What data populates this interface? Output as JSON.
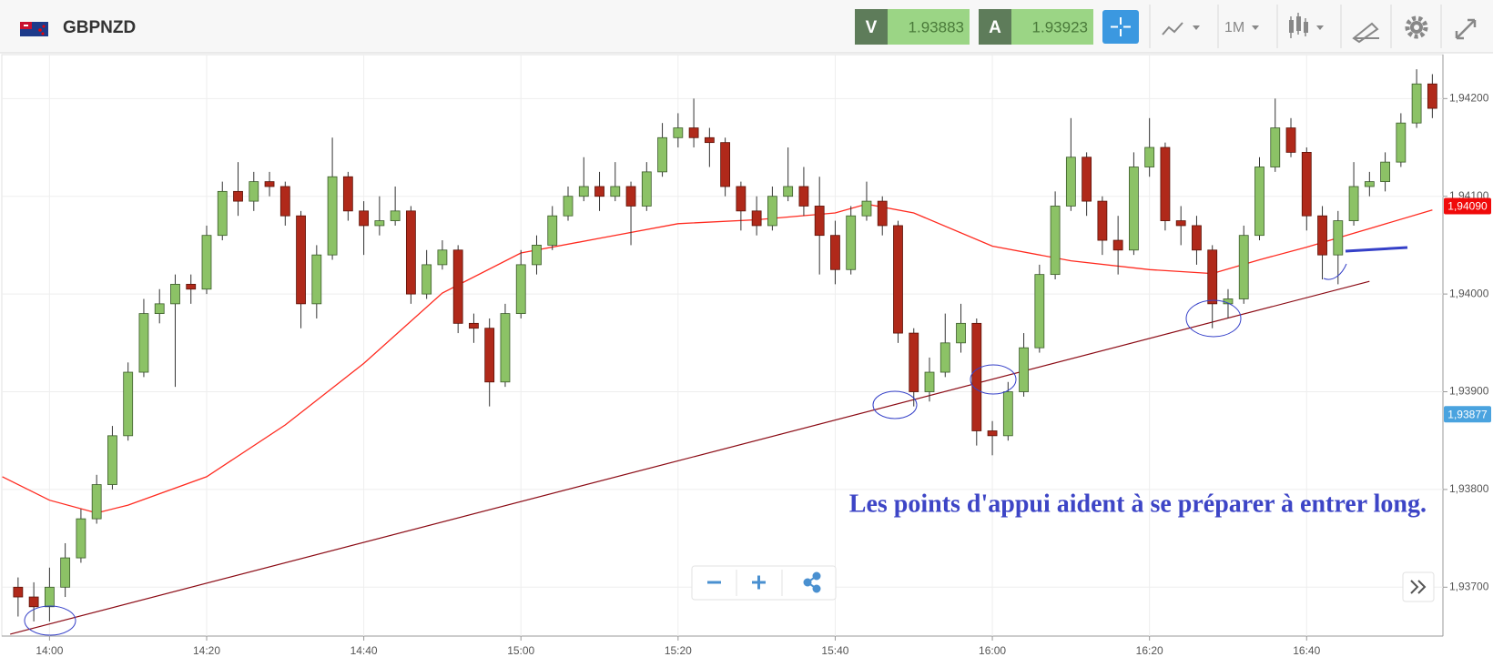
{
  "header": {
    "symbol": "GBPNZD",
    "bid_label": "V",
    "bid": "1.93883",
    "ask_label": "A",
    "ask": "1.93923",
    "timeframe": "1M"
  },
  "chart_data": {
    "type": "candlestick",
    "annotation": "Les points d'appui aident à se préparer à entrer long.",
    "x": [
      "13:56",
      "13:58",
      "14:00",
      "14:02",
      "14:04",
      "14:06",
      "14:08",
      "14:10",
      "14:12",
      "14:14",
      "14:16",
      "14:18",
      "14:20",
      "14:22",
      "14:24",
      "14:26",
      "14:28",
      "14:30",
      "14:32",
      "14:34",
      "14:36",
      "14:38",
      "14:40",
      "14:42",
      "14:44",
      "14:46",
      "14:48",
      "14:50",
      "14:52",
      "14:54",
      "14:56",
      "14:58",
      "15:00",
      "15:02",
      "15:04",
      "15:06",
      "15:08",
      "15:10",
      "15:12",
      "15:14",
      "15:16",
      "15:18",
      "15:20",
      "15:22",
      "15:24",
      "15:26",
      "15:28",
      "15:30",
      "15:32",
      "15:34",
      "15:36",
      "15:38",
      "15:40",
      "15:42",
      "15:44",
      "15:46",
      "15:48",
      "15:50",
      "15:52",
      "15:54",
      "15:56",
      "15:58",
      "16:00",
      "16:02",
      "16:04",
      "16:06",
      "16:08",
      "16:10",
      "16:12",
      "16:14",
      "16:16",
      "16:18",
      "16:20",
      "16:22",
      "16:24",
      "16:26",
      "16:28",
      "16:30",
      "16:32",
      "16:34",
      "16:36",
      "16:38",
      "16:40",
      "16:42",
      "16:44",
      "16:46",
      "16:48",
      "16:50",
      "16:52",
      "16:54",
      "16:56"
    ],
    "open": [
      1.937,
      1.9369,
      1.9368,
      1.937,
      1.9373,
      1.9377,
      1.93805,
      1.93855,
      1.9392,
      1.9398,
      1.9399,
      1.9401,
      1.94005,
      1.9406,
      1.94105,
      1.94095,
      1.94115,
      1.9411,
      1.9408,
      1.9399,
      1.9404,
      1.9412,
      1.94085,
      1.9407,
      1.94075,
      1.94085,
      1.94,
      1.9403,
      1.94045,
      1.9397,
      1.93965,
      1.9391,
      1.9398,
      1.9403,
      1.9405,
      1.9408,
      1.941,
      1.9411,
      1.941,
      1.9411,
      1.9409,
      1.94125,
      1.9416,
      1.9417,
      1.9416,
      1.94155,
      1.9411,
      1.94085,
      1.9407,
      1.941,
      1.9411,
      1.9409,
      1.9406,
      1.94025,
      1.9408,
      1.94095,
      1.9407,
      1.9396,
      1.939,
      1.9392,
      1.9395,
      1.9397,
      1.9386,
      1.93855,
      1.939,
      1.93945,
      1.9402,
      1.9409,
      1.9414,
      1.94095,
      1.94055,
      1.94045,
      1.9413,
      1.9415,
      1.94075,
      1.9407,
      1.94045,
      1.9399,
      1.93995,
      1.9406,
      1.9413,
      1.9417,
      1.94145,
      1.9408,
      1.9404,
      1.94075,
      1.9411,
      1.94115,
      1.94135,
      1.94175,
      1.94215
    ],
    "high": [
      1.9371,
      1.93705,
      1.9372,
      1.93745,
      1.9378,
      1.93815,
      1.93865,
      1.9393,
      1.93995,
      1.94005,
      1.9402,
      1.9402,
      1.9407,
      1.94115,
      1.94135,
      1.94125,
      1.94125,
      1.94115,
      1.94085,
      1.9405,
      1.9416,
      1.94125,
      1.94095,
      1.941,
      1.9411,
      1.9409,
      1.94045,
      1.94055,
      1.9405,
      1.9398,
      1.93975,
      1.9399,
      1.94045,
      1.9406,
      1.9409,
      1.9411,
      1.9414,
      1.94125,
      1.94135,
      1.94115,
      1.94135,
      1.94175,
      1.94185,
      1.942,
      1.9417,
      1.9416,
      1.94115,
      1.941,
      1.9411,
      1.9415,
      1.9413,
      1.9412,
      1.94075,
      1.9409,
      1.94115,
      1.941,
      1.94075,
      1.93965,
      1.93935,
      1.9398,
      1.9399,
      1.93975,
      1.9387,
      1.9391,
      1.9396,
      1.9403,
      1.94105,
      1.9418,
      1.94145,
      1.941,
      1.9408,
      1.94145,
      1.9418,
      1.94155,
      1.9409,
      1.9408,
      1.9405,
      1.94005,
      1.9407,
      1.9414,
      1.942,
      1.9418,
      1.9415,
      1.9409,
      1.94085,
      1.94135,
      1.94125,
      1.94145,
      1.94185,
      1.9423,
      1.94225
    ],
    "low": [
      1.9367,
      1.93665,
      1.93665,
      1.9369,
      1.93725,
      1.93765,
      1.938,
      1.9385,
      1.93915,
      1.9397,
      1.93905,
      1.9399,
      1.94,
      1.94055,
      1.9408,
      1.94085,
      1.941,
      1.9407,
      1.93965,
      1.93975,
      1.94035,
      1.94075,
      1.9404,
      1.9406,
      1.9407,
      1.9399,
      1.93995,
      1.94025,
      1.9396,
      1.9395,
      1.93885,
      1.93905,
      1.93975,
      1.9402,
      1.94045,
      1.94075,
      1.94095,
      1.94085,
      1.94095,
      1.9405,
      1.94085,
      1.9412,
      1.9415,
      1.9415,
      1.9413,
      1.941,
      1.94065,
      1.9406,
      1.94065,
      1.94095,
      1.9408,
      1.9402,
      1.9401,
      1.9402,
      1.94075,
      1.9406,
      1.9395,
      1.93885,
      1.9389,
      1.93915,
      1.9394,
      1.93845,
      1.93835,
      1.9385,
      1.93895,
      1.9394,
      1.94015,
      1.94085,
      1.9408,
      1.9404,
      1.9402,
      1.9404,
      1.9412,
      1.94065,
      1.9405,
      1.9403,
      1.93965,
      1.93975,
      1.9399,
      1.94055,
      1.94125,
      1.9414,
      1.94065,
      1.94015,
      1.9401,
      1.9407,
      1.941,
      1.94105,
      1.9413,
      1.9417,
      1.9418
    ],
    "close": [
      1.9369,
      1.9368,
      1.937,
      1.9373,
      1.9377,
      1.93805,
      1.93855,
      1.9392,
      1.9398,
      1.9399,
      1.9401,
      1.94005,
      1.9406,
      1.94105,
      1.94095,
      1.94115,
      1.9411,
      1.9408,
      1.9399,
      1.9404,
      1.9412,
      1.94085,
      1.9407,
      1.94075,
      1.94085,
      1.94,
      1.9403,
      1.94045,
      1.9397,
      1.93965,
      1.9391,
      1.9398,
      1.9403,
      1.9405,
      1.9408,
      1.941,
      1.9411,
      1.941,
      1.9411,
      1.9409,
      1.94125,
      1.9416,
      1.9417,
      1.9416,
      1.94155,
      1.9411,
      1.94085,
      1.9407,
      1.941,
      1.9411,
      1.9409,
      1.9406,
      1.94025,
      1.9408,
      1.94095,
      1.9407,
      1.9396,
      1.939,
      1.9392,
      1.9395,
      1.9397,
      1.9386,
      1.93855,
      1.939,
      1.93945,
      1.9402,
      1.9409,
      1.9414,
      1.94095,
      1.94055,
      1.94045,
      1.9413,
      1.9415,
      1.94075,
      1.9407,
      1.94045,
      1.9399,
      1.93995,
      1.9406,
      1.9413,
      1.9417,
      1.94145,
      1.9408,
      1.9404,
      1.94075,
      1.9411,
      1.94115,
      1.94135,
      1.94175,
      1.94215,
      1.9419
    ],
    "up_color": "#8cc266",
    "down_color": "#b0291a",
    "ma": {
      "color": "#ff2a1f",
      "x": [
        "13:54",
        "14:00",
        "14:06",
        "14:10",
        "14:20",
        "14:30",
        "14:40",
        "14:50",
        "15:00",
        "15:10",
        "15:20",
        "15:30",
        "15:40",
        "15:44",
        "15:50",
        "16:00",
        "16:10",
        "16:20",
        "16:28",
        "16:34",
        "16:40",
        "16:48",
        "16:56"
      ],
      "values": [
        1.93813,
        1.93789,
        1.93776,
        1.93784,
        1.93813,
        1.93866,
        1.93929,
        1.94001,
        1.94042,
        1.94057,
        1.94072,
        1.94076,
        1.94083,
        1.94092,
        1.94083,
        1.94049,
        1.94034,
        1.94025,
        1.94021,
        1.94035,
        1.94048,
        1.94067,
        1.94086
      ]
    },
    "trendline": {
      "color": "#8b0a14",
      "x": [
        "13:55",
        "16:48"
      ],
      "values": [
        1.93652,
        1.94013
      ]
    },
    "price_tags": [
      {
        "value": 1.9409,
        "label": "1,94090",
        "color": "#f00a0a"
      },
      {
        "value": 1.93877,
        "label": "1,93877",
        "color": "#4aa3df"
      }
    ],
    "xlim": [
      "13:54",
      "16:57"
    ],
    "xticks": [
      "14:00",
      "14:20",
      "14:40",
      "15:00",
      "15:20",
      "15:40",
      "16:00",
      "16:20",
      "16:40"
    ],
    "ylim": [
      1.9365,
      1.94245
    ],
    "yticks": [
      {
        "value": 1.937,
        "label": "1,93700"
      },
      {
        "value": 1.938,
        "label": "1,93800"
      },
      {
        "value": 1.939,
        "label": "1,93900"
      },
      {
        "value": 1.94,
        "label": "1,94000"
      },
      {
        "value": 1.941,
        "label": "1,94100"
      },
      {
        "value": 1.942,
        "label": "1,94200"
      }
    ],
    "grid": true
  }
}
